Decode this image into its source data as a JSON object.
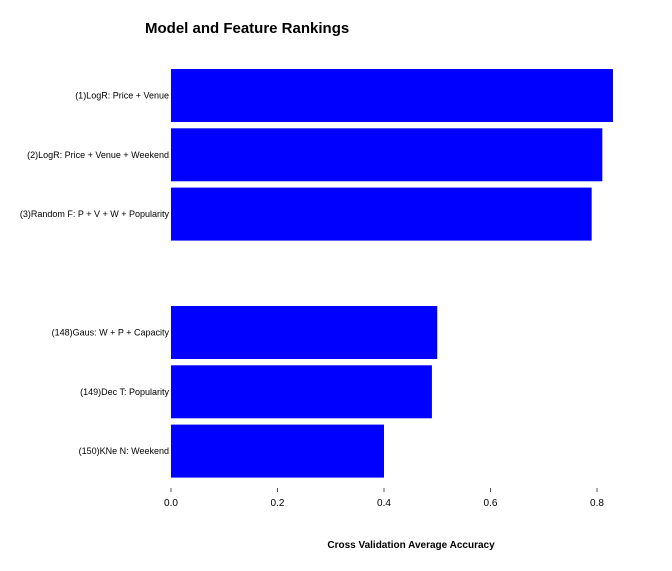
{
  "chart_data": {
    "type": "bar",
    "orientation": "horizontal",
    "title": "Model and Feature Rankings",
    "xlabel": "Cross Validation Average Accuracy",
    "ylabel": "",
    "xlim": [
      0,
      0.83
    ],
    "xticks": [
      0.0,
      0.2,
      0.4,
      0.6,
      0.8
    ],
    "xtick_labels": [
      "0.0",
      "0.2",
      "0.4",
      "0.6",
      "0.8"
    ],
    "grid": false,
    "legend": "none",
    "bar_color": "#0000ff",
    "groups": [
      {
        "categories": [
          "(1)LogR: Price + Venue",
          "(2)LogR: Price + Venue + Weekend",
          "(3)Random F: P + V + W + Popularity"
        ],
        "values": [
          0.83,
          0.81,
          0.79
        ]
      },
      {
        "categories": [
          "(148)Gaus: W + P + Capacity",
          "(149)Dec T: Popularity",
          "(150)KNe N: Weekend"
        ],
        "values": [
          0.5,
          0.49,
          0.4
        ]
      }
    ]
  }
}
